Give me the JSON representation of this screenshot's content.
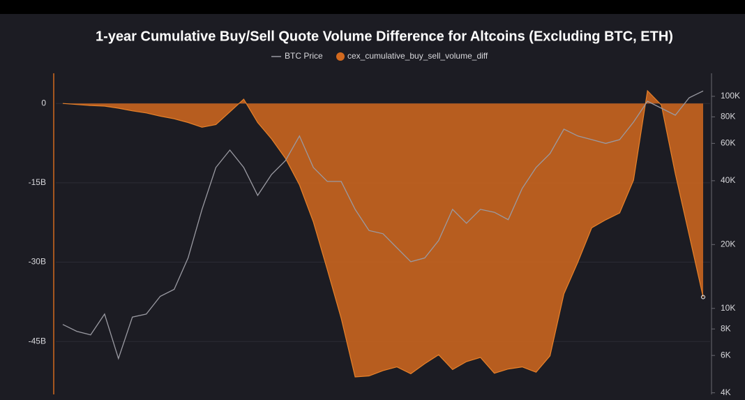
{
  "chart_data": {
    "type": "area-line",
    "title": "1-year Cumulative Buy/Sell Quote Volume Difference for Altcoins (Excluding BTC, ETH)",
    "series": [
      {
        "name": "BTC Price",
        "color": "#9a9aa2",
        "axis": "y2",
        "values": [
          8400,
          7800,
          7500,
          9400,
          5800,
          9100,
          9400,
          11400,
          12300,
          17300,
          29300,
          46200,
          55800,
          46200,
          34100,
          42800,
          49800,
          65000,
          46200,
          39700,
          39700,
          29300,
          23300,
          22500,
          19300,
          16600,
          17300,
          20900,
          29300,
          25200,
          29300,
          28400,
          26200,
          36800,
          46200,
          53700,
          70000,
          65000,
          62500,
          60000,
          62500,
          75600,
          94800,
          87900,
          81500,
          98500,
          106000
        ]
      },
      {
        "name": "cex_cumulative_buy_sell_volume_diff",
        "color": "#d2691e",
        "axis": "y",
        "values": [
          0,
          -0.2,
          -0.4,
          -0.5,
          -0.9,
          -1.4,
          -1.8,
          -2.4,
          -2.9,
          -3.6,
          -4.5,
          -4.0,
          -1.6,
          0.8,
          -3.6,
          -6.7,
          -10.4,
          -15.4,
          -22.4,
          -31.4,
          -40.6,
          -51.7,
          -51.5,
          -50.5,
          -49.8,
          -51.1,
          -49.2,
          -47.5,
          -50.3,
          -48.8,
          -48.0,
          -51.0,
          -50.2,
          -49.8,
          -50.8,
          -47.7,
          -36.0,
          -30.0,
          -23.5,
          -22.0,
          -20.7,
          -14.5,
          2.4,
          -0.3,
          -13.3,
          -24.9,
          -36.6
        ]
      }
    ],
    "ylim": [
      -55,
      5.7
    ],
    "yticks": [
      0,
      {
        "value": -15,
        "label": "-15B"
      },
      {
        "value": -30,
        "label": "-30B"
      },
      {
        "value": -45,
        "label": "-45B"
      }
    ],
    "y2lim": [
      3930,
      128400
    ],
    "y2log": true,
    "y2ticks": [
      {
        "value": 4000,
        "label": "4K"
      },
      {
        "value": 6000,
        "label": "6K"
      },
      {
        "value": 8000,
        "label": "8K"
      },
      {
        "value": 10000,
        "label": "10K"
      },
      {
        "value": 20000,
        "label": "20K"
      },
      {
        "value": 40000,
        "label": "40K"
      },
      {
        "value": 60000,
        "label": "60K"
      },
      {
        "value": 80000,
        "label": "80K"
      },
      {
        "value": 100000,
        "label": "100K"
      }
    ],
    "grid": true
  }
}
